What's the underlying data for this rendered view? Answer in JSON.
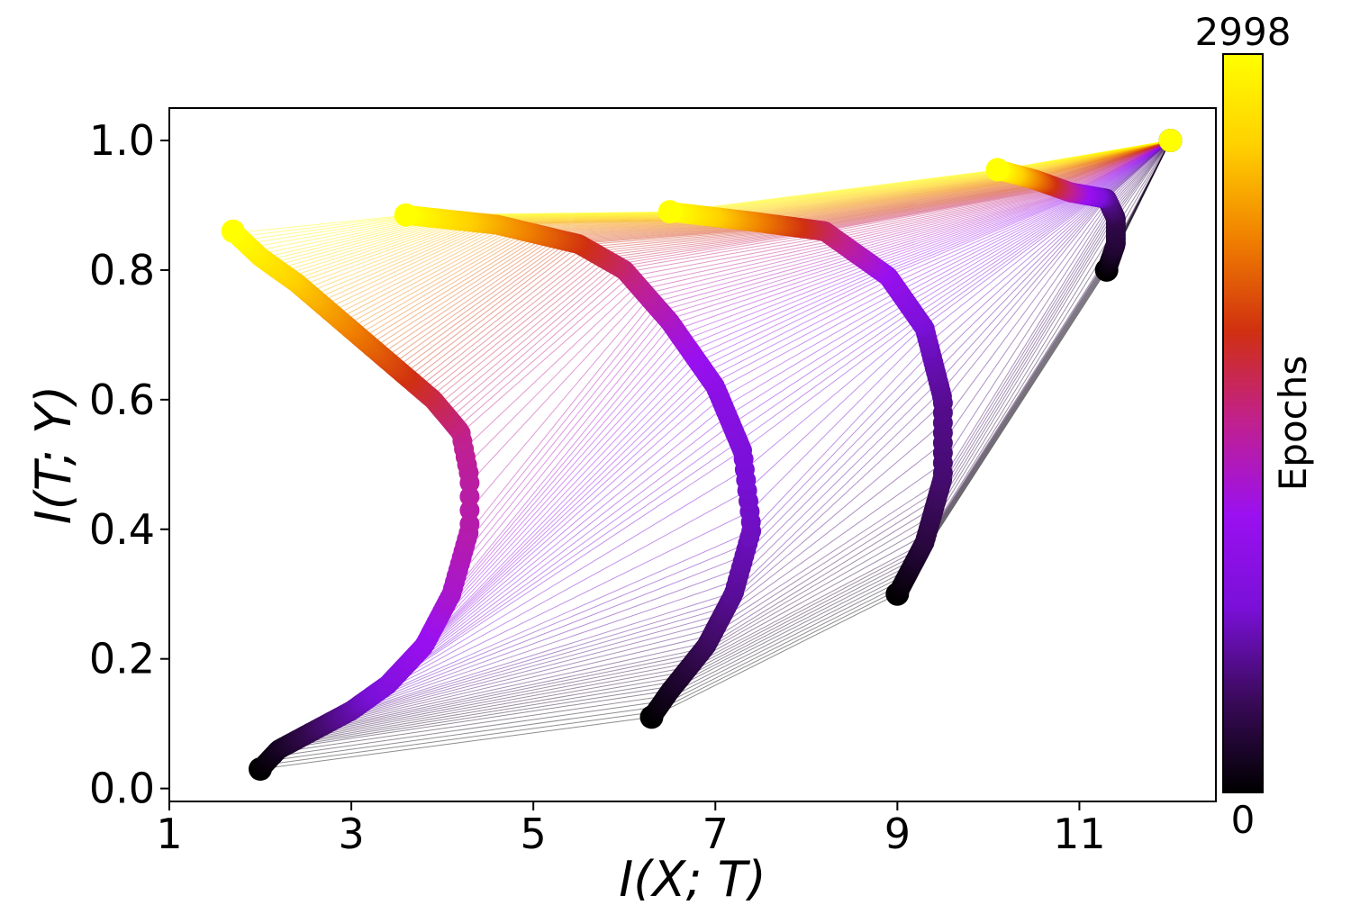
{
  "chart_data": {
    "type": "line",
    "xlabel": "I(X; T)",
    "ylabel": "I(T; Y)",
    "xlim": [
      1,
      12.5
    ],
    "ylim": [
      -0.02,
      1.05
    ],
    "xticks": [
      1,
      3,
      5,
      7,
      9,
      11
    ],
    "yticks": [
      0.0,
      0.2,
      0.4,
      0.6,
      0.8,
      1.0
    ],
    "ytick_labels": [
      "0.0",
      "0.2",
      "0.4",
      "0.6",
      "0.8",
      "1.0"
    ],
    "grid": false,
    "colorbar": {
      "label": "Epochs",
      "min": 0,
      "max": 2998,
      "min_label": "0",
      "max_label": "2998",
      "colormap": "gnuplot",
      "colors": [
        "#000000",
        "#3a0a5a",
        "#7a10d8",
        "#9a10f0",
        "#c02090",
        "#d03010",
        "#f08000",
        "#ffd000",
        "#ffff00"
      ]
    },
    "series": [
      {
        "points": [
          [
            2.0,
            0.03
          ],
          [
            2.2,
            0.06
          ],
          [
            2.6,
            0.09
          ],
          [
            3.0,
            0.12
          ],
          [
            3.4,
            0.16
          ],
          [
            3.8,
            0.22
          ],
          [
            4.1,
            0.3
          ],
          [
            4.3,
            0.4
          ],
          [
            4.3,
            0.48
          ],
          [
            4.2,
            0.55
          ],
          [
            3.9,
            0.6
          ],
          [
            3.4,
            0.66
          ],
          [
            2.9,
            0.72
          ],
          [
            2.4,
            0.78
          ],
          [
            2.0,
            0.82
          ],
          [
            1.7,
            0.86
          ]
        ]
      },
      {
        "points": [
          [
            6.3,
            0.11
          ],
          [
            6.5,
            0.15
          ],
          [
            6.9,
            0.22
          ],
          [
            7.2,
            0.3
          ],
          [
            7.4,
            0.4
          ],
          [
            7.3,
            0.52
          ],
          [
            7.0,
            0.62
          ],
          [
            6.5,
            0.72
          ],
          [
            6.0,
            0.8
          ],
          [
            5.5,
            0.84
          ],
          [
            4.6,
            0.87
          ],
          [
            3.6,
            0.885
          ]
        ]
      },
      {
        "points": [
          [
            9.0,
            0.3
          ],
          [
            9.3,
            0.38
          ],
          [
            9.5,
            0.48
          ],
          [
            9.5,
            0.6
          ],
          [
            9.3,
            0.71
          ],
          [
            8.9,
            0.79
          ],
          [
            8.2,
            0.86
          ],
          [
            7.4,
            0.875
          ],
          [
            6.5,
            0.89
          ]
        ]
      },
      {
        "points": [
          [
            11.3,
            0.8
          ],
          [
            11.4,
            0.84
          ],
          [
            11.4,
            0.88
          ],
          [
            11.3,
            0.91
          ],
          [
            10.9,
            0.92
          ],
          [
            10.5,
            0.94
          ],
          [
            10.1,
            0.955
          ]
        ]
      },
      {
        "points": [
          [
            12.0,
            1.0
          ]
        ]
      }
    ]
  }
}
